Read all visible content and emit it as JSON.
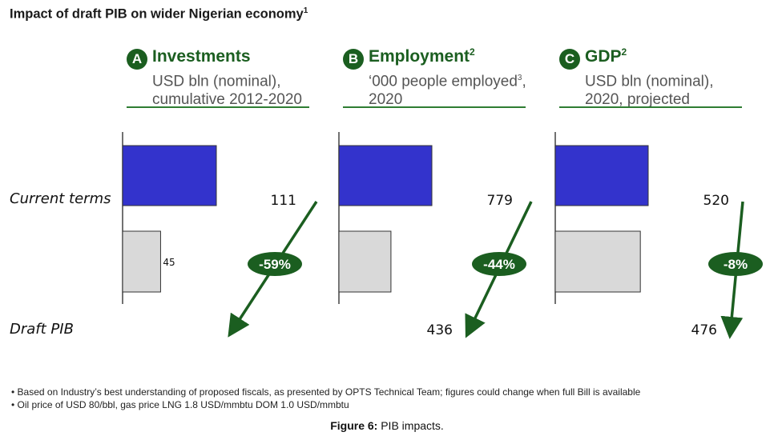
{
  "title": "Impact of draft PIB on wider Nigerian economy",
  "title_footnote": "1",
  "row_labels": {
    "current": "Current terms",
    "draft": "Draft PIB"
  },
  "panels": [
    {
      "letter": "A",
      "title": "Investments",
      "title_sup": "",
      "subtitle_line1": "USD bln (nominal),",
      "subtitle_sup": "",
      "subtitle_line2": "cumulative 2012-2020"
    },
    {
      "letter": "B",
      "title": "Employment",
      "title_sup": "2",
      "subtitle_line1": "‘000 people employed",
      "subtitle_sup": "3",
      "subtitle_line1_after": ",",
      "subtitle_line2": "2020"
    },
    {
      "letter": "C",
      "title": "GDP",
      "title_sup": "2",
      "subtitle_line1": "USD bln (nominal),",
      "subtitle_sup": "",
      "subtitle_line2": "2020, projected"
    }
  ],
  "chart_data": [
    {
      "type": "bar",
      "title": "Investments",
      "categories": [
        "Current terms",
        "Draft PIB"
      ],
      "values": [
        111,
        45
      ],
      "change_label": "-59%",
      "colors": [
        "#3333cc",
        "#d9d9d9"
      ]
    },
    {
      "type": "bar",
      "title": "Employment",
      "categories": [
        "Current terms",
        "Draft PIB"
      ],
      "values": [
        779,
        436
      ],
      "change_label": "-44%",
      "colors": [
        "#3333cc",
        "#d9d9d9"
      ]
    },
    {
      "type": "bar",
      "title": "GDP",
      "categories": [
        "Current terms",
        "Draft PIB"
      ],
      "values": [
        520,
        476
      ],
      "change_label": "-8%",
      "colors": [
        "#3333cc",
        "#d9d9d9"
      ]
    }
  ],
  "footnotes": [
    "• Based on Industry’s best understanding of proposed fiscals, as presented by OPTS Technical Team; figures could change when full Bill is available",
    "• Oil price of USD 80/bbl, gas price LNG 1.8 USD/mmbtu DOM 1.0 USD/mmbtu"
  ],
  "caption": {
    "label": "Figure 6:",
    "text": " PIB impacts."
  },
  "colors": {
    "accent_green": "#1b5e20",
    "bar_current": "#3333cc",
    "bar_draft": "#d9d9d9"
  }
}
